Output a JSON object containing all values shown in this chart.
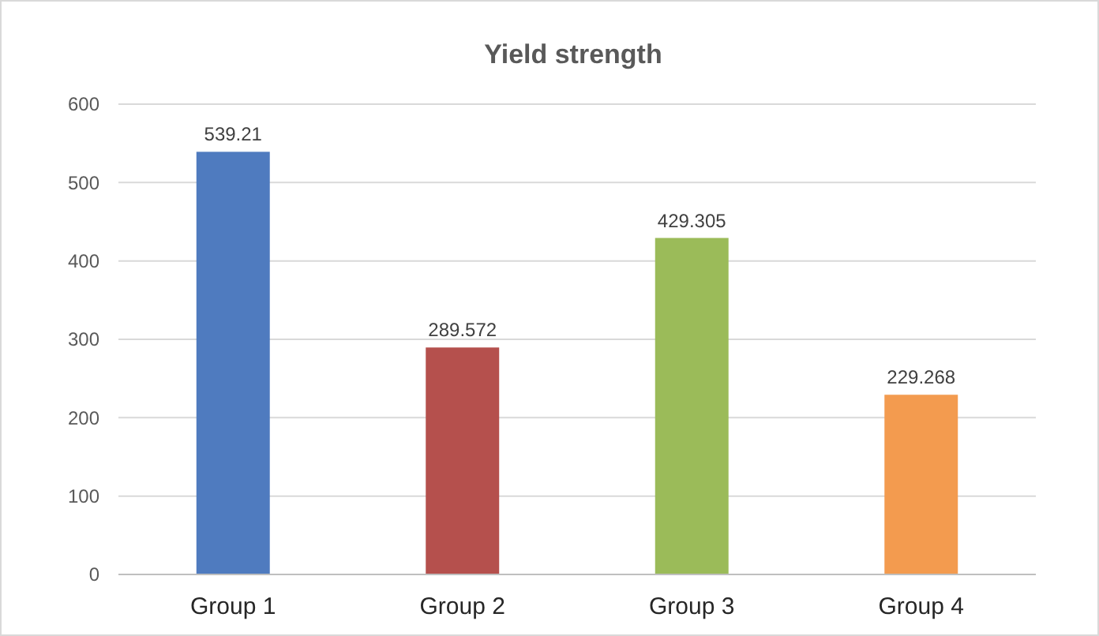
{
  "chart_data": {
    "type": "bar",
    "title": "Yield strength",
    "categories": [
      "Group 1",
      "Group 2",
      "Group 3",
      "Group 4"
    ],
    "values": [
      539.21,
      289.572,
      429.305,
      229.268
    ],
    "colors": [
      "#4f7bbf",
      "#b5504d",
      "#9bbb59",
      "#f39b4f"
    ],
    "ylim": [
      0,
      600
    ],
    "yticks": [
      0,
      100,
      200,
      300,
      400,
      500,
      600
    ],
    "grid": "y",
    "data_labels": true
  }
}
